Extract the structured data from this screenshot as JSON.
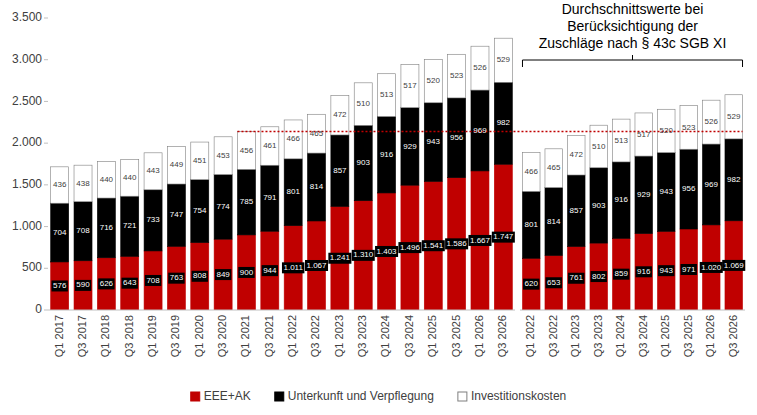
{
  "chart_data": [
    {
      "type": "bar",
      "stacked": true,
      "categories": [
        "Q1 2017",
        "Q3 2017",
        "Q1 2018",
        "Q3 2018",
        "Q1 2019",
        "Q3 2019",
        "Q1 2020",
        "Q3 2020",
        "Q1 2021",
        "Q3 2021",
        "Q1 2022",
        "Q3 2022",
        "Q1 2023",
        "Q3 2023",
        "Q1 2024",
        "Q3 2024",
        "Q1 2025",
        "Q3 2025",
        "Q1 2026",
        "Q3 2026"
      ],
      "series": [
        {
          "name": "EEE+AK",
          "color": "#c00000",
          "values": [
            576,
            590,
            626,
            643,
            708,
            763,
            808,
            849,
            900,
            944,
            1011,
            1067,
            1241,
            1310,
            1403,
            1496,
            1541,
            1586,
            1667,
            1747
          ],
          "value_labels": [
            "576",
            "590",
            "626",
            "643",
            "708",
            "763",
            "808",
            "849",
            "900",
            "944",
            "1.011",
            "1.067",
            "1.241",
            "1.310",
            "1.403",
            "1.496",
            "1.541",
            "1.586",
            "1.667",
            "1.747"
          ]
        },
        {
          "name": "Unterkunft und Verpflegung",
          "color": "#000000",
          "values": [
            704,
            708,
            716,
            721,
            733,
            747,
            754,
            774,
            785,
            791,
            801,
            814,
            857,
            903,
            916,
            929,
            943,
            956,
            969,
            982
          ]
        },
        {
          "name": "Investitionskosten",
          "color": "#ffffff",
          "values": [
            436,
            438,
            440,
            440,
            443,
            449,
            451,
            453,
            456,
            461,
            466,
            465,
            472,
            510,
            513,
            517,
            520,
            523,
            526,
            529
          ]
        }
      ],
      "ylim": [
        0,
        3500
      ],
      "yticks": [
        0,
        500,
        {
          "value": 1000,
          "label": "1.000"
        },
        {
          "value": 1500,
          "label": "1.500"
        },
        {
          "value": 2000,
          "label": "2.000"
        },
        {
          "value": 2500,
          "label": "2.500"
        },
        {
          "value": 3000,
          "label": "3.000"
        },
        {
          "value": 3500,
          "label": "3.500"
        }
      ],
      "grid": false,
      "legend": "bottom",
      "data_labels": true,
      "reference_line": 2140
    },
    {
      "type": "bar",
      "stacked": true,
      "annotation": "Durchschnittswerte bei\nBerücksichtigung der\nZuschläge nach § 43c SGB XI",
      "categories": [
        "Q1 2022",
        "Q3 2022",
        "Q1 2023",
        "Q3 2023",
        "Q1 2024",
        "Q3 2024",
        "Q1 2025",
        "Q3 2025",
        "Q1 2026",
        "Q3 2026"
      ],
      "series": [
        {
          "color": "#c00000",
          "values": [
            620,
            653,
            761,
            802,
            859,
            916,
            943,
            971,
            1020,
            1069
          ],
          "value_labels": [
            "620",
            "653",
            "761",
            "802",
            "859",
            "916",
            "943",
            "971",
            "1.020",
            "1.069"
          ]
        },
        {
          "color": "#000000",
          "values": [
            801,
            814,
            857,
            903,
            916,
            929,
            943,
            956,
            969,
            982
          ]
        },
        {
          "color": "#ffffff",
          "values": [
            466,
            465,
            472,
            510,
            513,
            517,
            520,
            523,
            526,
            529
          ]
        }
      ],
      "ylim": [
        0,
        3500
      ],
      "tick_labels": "x",
      "grid": false,
      "data_labels": true
    }
  ]
}
